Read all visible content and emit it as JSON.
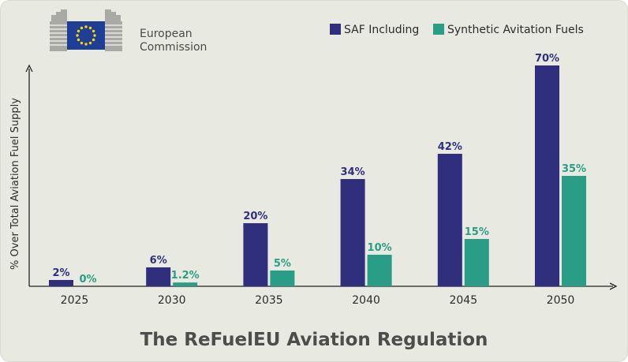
{
  "brand": {
    "line1": "European",
    "line2": "Commission"
  },
  "colors": {
    "saf": "#2f2f7e",
    "synthetic": "#2a9d86",
    "background": "#e8eae2",
    "flag": "#1f3f96",
    "star": "#ffd500"
  },
  "chart_data": {
    "type": "bar",
    "title": "The ReFuelEU Aviation Regulation",
    "xlabel": "",
    "ylabel": "% Over Total Aviation Fuel Supply",
    "categories": [
      "2025",
      "2030",
      "2035",
      "2040",
      "2045",
      "2050"
    ],
    "ylim": [
      0,
      70
    ],
    "grid": false,
    "legend_position": "top-right",
    "series": [
      {
        "name": "SAF Including",
        "values": [
          2,
          6,
          20,
          34,
          42,
          70
        ],
        "labels": [
          "2%",
          "6%",
          "20%",
          "34%",
          "42%",
          "70%"
        ],
        "color": "#2f2f7e"
      },
      {
        "name": "Synthetic Avitation Fuels",
        "values": [
          0,
          1.2,
          5,
          10,
          15,
          35
        ],
        "labels": [
          "0%",
          "1.2%",
          "5%",
          "10%",
          "15%",
          "35%"
        ],
        "color": "#2a9d86"
      }
    ]
  }
}
